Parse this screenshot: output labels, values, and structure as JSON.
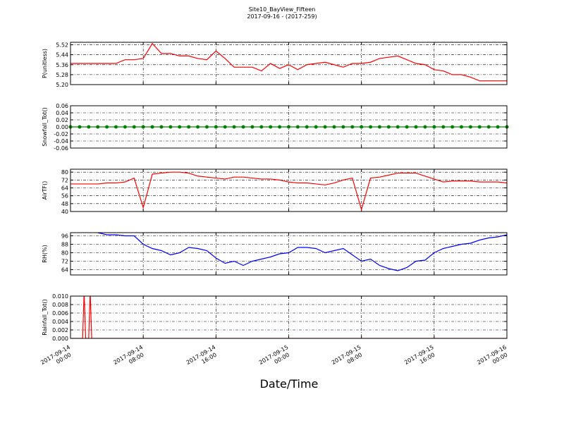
{
  "figure": {
    "title": "Site10_BayView_Fifteen",
    "subtitle": "2017-09-16 - (2017-259)",
    "xlabel": "Date/Time",
    "xlim": [
      "2017-09-14 00:00",
      "2017-09-16 00:00"
    ],
    "xticks": [
      "2017-09-14 00:00",
      "2017-09-14 08:00",
      "2017-09-14 16:00",
      "2017-09-15 00:00",
      "2017-09-15 08:00",
      "2017-09-15 16:00",
      "2017-09-16 00:00"
    ],
    "grid": true,
    "x": [
      "2017-09-14 00:00",
      "2017-09-14 01:00",
      "2017-09-14 02:00",
      "2017-09-14 03:00",
      "2017-09-14 04:00",
      "2017-09-14 05:00",
      "2017-09-14 06:00",
      "2017-09-14 07:00",
      "2017-09-14 08:00",
      "2017-09-14 09:00",
      "2017-09-14 10:00",
      "2017-09-14 11:00",
      "2017-09-14 12:00",
      "2017-09-14 13:00",
      "2017-09-14 14:00",
      "2017-09-14 15:00",
      "2017-09-14 16:00",
      "2017-09-14 17:00",
      "2017-09-14 18:00",
      "2017-09-14 19:00",
      "2017-09-14 20:00",
      "2017-09-14 21:00",
      "2017-09-14 22:00",
      "2017-09-14 23:00",
      "2017-09-15 00:00",
      "2017-09-15 01:00",
      "2017-09-15 02:00",
      "2017-09-15 03:00",
      "2017-09-15 04:00",
      "2017-09-15 05:00",
      "2017-09-15 06:00",
      "2017-09-15 07:00",
      "2017-09-15 08:00",
      "2017-09-15 09:00",
      "2017-09-15 10:00",
      "2017-09-15 11:00",
      "2017-09-15 12:00",
      "2017-09-15 13:00",
      "2017-09-15 14:00",
      "2017-09-15 15:00",
      "2017-09-15 16:00",
      "2017-09-15 17:00",
      "2017-09-15 18:00",
      "2017-09-15 19:00",
      "2017-09-15 20:00",
      "2017-09-15 21:00",
      "2017-09-15 22:00",
      "2017-09-15 23:00",
      "2017-09-16 00:00"
    ]
  },
  "chart_data": [
    {
      "type": "line",
      "ylabel": "P(unitless)",
      "color": "#ff0000",
      "ylim": [
        5.2,
        5.54
      ],
      "yticks": [
        {
          "value": 5.2,
          "label": "5.20"
        },
        5.28,
        5.36,
        5.44,
        5.52
      ],
      "values": [
        5.37,
        5.37,
        5.37,
        5.37,
        5.37,
        5.37,
        5.4,
        5.4,
        5.41,
        5.53,
        5.45,
        5.45,
        5.43,
        5.43,
        5.41,
        5.4,
        5.47,
        5.41,
        5.34,
        5.34,
        5.34,
        5.31,
        5.37,
        5.33,
        5.36,
        5.32,
        5.36,
        5.37,
        5.38,
        5.36,
        5.34,
        5.37,
        5.37,
        5.38,
        5.41,
        5.42,
        5.43,
        5.4,
        5.37,
        5.36,
        5.32,
        5.31,
        5.28,
        5.28,
        5.26,
        5.23,
        5.23,
        5.23,
        5.23
      ]
    },
    {
      "type": "line",
      "ylabel": "Snowfall_Tot()",
      "color": "#008000",
      "markers": true,
      "ylim": [
        -0.06,
        0.06
      ],
      "yticks": [
        -0.06,
        -0.04,
        -0.02,
        {
          "value": 0,
          "label": "0.00"
        },
        0.02,
        0.04,
        0.06
      ],
      "values": [
        0,
        0,
        0,
        0,
        0,
        0,
        0,
        0,
        0,
        0,
        0,
        0,
        0,
        0,
        0,
        0,
        0,
        0,
        0,
        0,
        0,
        0,
        0,
        0,
        0,
        0,
        0,
        0,
        0,
        0,
        0,
        0,
        0,
        0,
        0,
        0,
        0,
        0,
        0,
        0,
        0,
        0,
        0,
        0,
        0,
        0,
        0,
        0,
        0
      ]
    },
    {
      "type": "line",
      "ylabel": "AirTF()",
      "color": "#ff0000",
      "ylim": [
        40,
        83
      ],
      "yticks": [
        40,
        48,
        56,
        64,
        72,
        80
      ],
      "values": [
        68,
        68,
        68,
        68,
        69,
        69,
        70,
        74,
        44,
        78,
        79,
        80,
        80,
        79,
        76,
        75,
        74,
        73,
        75,
        75,
        74,
        73,
        73,
        72,
        70,
        69,
        69,
        68,
        67,
        69,
        72,
        74,
        42,
        74,
        75,
        77,
        79,
        79,
        79,
        76,
        73,
        70,
        71,
        71,
        71,
        70,
        70,
        70,
        69
      ]
    },
    {
      "type": "line",
      "ylabel": "RH(%)",
      "color": "#0000ff",
      "ylim": [
        59,
        99
      ],
      "yticks": [
        64,
        72,
        80,
        88,
        96
      ],
      "values": [
        100,
        100,
        100,
        99,
        97,
        97,
        96,
        96,
        88,
        84,
        82,
        78,
        80,
        85,
        84,
        82,
        75,
        70,
        72,
        68,
        72,
        74,
        76,
        79,
        80,
        85,
        85,
        84,
        80,
        82,
        84,
        78,
        72,
        74,
        68,
        65,
        63,
        66,
        72,
        73,
        80,
        84,
        86,
        88,
        89,
        92,
        94,
        95,
        97
      ]
    },
    {
      "type": "line",
      "ylabel": "Rainfall_Tot()",
      "color": "#ff0000",
      "ylim": [
        0,
        0.01
      ],
      "yticks": [
        {
          "value": 0,
          "label": "0.000"
        },
        0.002,
        0.004,
        0.006,
        0.008,
        {
          "value": 0.01,
          "label": "0.010"
        }
      ],
      "x": [
        "2017-09-14 00:00",
        "2017-09-14 01:20",
        "2017-09-14 01:30",
        "2017-09-14 01:40",
        "2017-09-14 02:00",
        "2017-09-14 02:10",
        "2017-09-14 02:20",
        "2017-09-16 00:00"
      ],
      "values": [
        0,
        0,
        0.011,
        0,
        0,
        0.011,
        0,
        0
      ]
    }
  ]
}
